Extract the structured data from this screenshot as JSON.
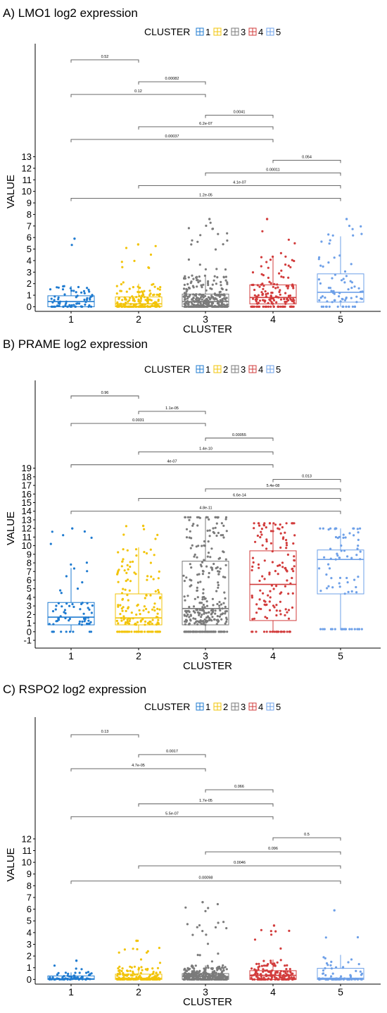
{
  "legend_title": "CLUSTER",
  "cluster_colors": [
    "#1f7bd0",
    "#f2c40a",
    "#7b7b7b",
    "#d23c3c",
    "#6ea0e8"
  ],
  "chart_data": [
    {
      "type": "box",
      "panel_label": "A) LMO1 log2 expression",
      "xlabel": "CLUSTER",
      "ylabel": "VALUE",
      "categories": [
        "1",
        "2",
        "3",
        "4",
        "5"
      ],
      "legend_entries": [
        "1",
        "2",
        "3",
        "4",
        "5"
      ],
      "yticks": [
        0,
        1,
        2,
        3,
        4,
        5,
        6,
        7,
        8,
        9,
        10,
        11,
        12,
        13
      ],
      "ylim": [
        -0.4,
        22.8
      ],
      "boxes": [
        {
          "category": "1",
          "q1": 0.0,
          "median": 0.45,
          "q3": 0.95,
          "whisker_low": 0.0,
          "whisker_high": 1.8,
          "max": 5.9
        },
        {
          "category": "2",
          "q1": 0.0,
          "median": 0.25,
          "q3": 0.85,
          "whisker_low": 0.0,
          "whisker_high": 2.0,
          "max": 5.4
        },
        {
          "category": "3",
          "q1": 0.0,
          "median": 0.45,
          "q3": 1.1,
          "whisker_low": 0.0,
          "whisker_high": 2.7,
          "max": 7.6
        },
        {
          "category": "4",
          "q1": 0.25,
          "median": 0.8,
          "q3": 1.9,
          "whisker_low": 0.0,
          "whisker_high": 4.4,
          "max": 7.6
        },
        {
          "category": "5",
          "q1": 0.4,
          "median": 1.25,
          "q3": 2.85,
          "whisker_low": 0.0,
          "whisker_high": 6.1,
          "max": 7.6
        }
      ],
      "comparisons": [
        {
          "from": "1",
          "to": "2",
          "y": 21.4,
          "p": "0.52"
        },
        {
          "from": "2",
          "to": "3",
          "y": 19.5,
          "p": "0.00082"
        },
        {
          "from": "1",
          "to": "3",
          "y": 18.4,
          "p": "0.12"
        },
        {
          "from": "3",
          "to": "4",
          "y": 16.6,
          "p": "0.0041"
        },
        {
          "from": "2",
          "to": "4",
          "y": 15.6,
          "p": "6.2e-07"
        },
        {
          "from": "1",
          "to": "4",
          "y": 14.5,
          "p": "0.00037"
        },
        {
          "from": "4",
          "to": "5",
          "y": 12.7,
          "p": "0.054"
        },
        {
          "from": "3",
          "to": "5",
          "y": 11.6,
          "p": "0.00011"
        },
        {
          "from": "2",
          "to": "5",
          "y": 10.5,
          "p": "4.1e-07"
        },
        {
          "from": "1",
          "to": "5",
          "y": 9.4,
          "p": "1.2e-05"
        }
      ]
    },
    {
      "type": "box",
      "panel_label": "B) PRAME log2 expression",
      "xlabel": "CLUSTER",
      "ylabel": "VALUE",
      "categories": [
        "1",
        "2",
        "3",
        "4",
        "5"
      ],
      "legend_entries": [
        "1",
        "2",
        "3",
        "4",
        "5"
      ],
      "yticks": [
        -1,
        0,
        1,
        2,
        3,
        4,
        5,
        6,
        7,
        8,
        9,
        10,
        11,
        12,
        13,
        14,
        15,
        16,
        17,
        18,
        19
      ],
      "ylim": [
        -1.9,
        29.2
      ],
      "boxes": [
        {
          "category": "1",
          "q1": 0.8,
          "median": 1.7,
          "q3": 3.4,
          "whisker_low": 0.0,
          "whisker_high": 7.4,
          "max": 12.0
        },
        {
          "category": "2",
          "q1": 0.8,
          "median": 1.6,
          "q3": 4.4,
          "whisker_low": 0.0,
          "whisker_high": 9.8,
          "max": 12.3
        },
        {
          "category": "3",
          "q1": 0.8,
          "median": 2.7,
          "q3": 8.2,
          "whisker_low": 0.0,
          "whisker_high": 13.3,
          "max": 13.3
        },
        {
          "category": "4",
          "q1": 1.3,
          "median": 5.5,
          "q3": 9.4,
          "whisker_low": 0.0,
          "whisker_high": 12.6,
          "max": 12.6
        },
        {
          "category": "5",
          "q1": 4.4,
          "median": 8.4,
          "q3": 9.5,
          "whisker_low": 0.3,
          "whisker_high": 12.0,
          "max": 12.0
        }
      ],
      "comparisons": [
        {
          "from": "1",
          "to": "2",
          "y": 27.4,
          "p": "0.96"
        },
        {
          "from": "2",
          "to": "3",
          "y": 25.6,
          "p": "1.1e-05"
        },
        {
          "from": "1",
          "to": "3",
          "y": 24.2,
          "p": "0.0031"
        },
        {
          "from": "3",
          "to": "4",
          "y": 22.5,
          "p": "0.00055"
        },
        {
          "from": "2",
          "to": "4",
          "y": 20.9,
          "p": "1.4e-10"
        },
        {
          "from": "1",
          "to": "4",
          "y": 19.4,
          "p": "4e-07"
        },
        {
          "from": "4",
          "to": "5",
          "y": 17.7,
          "p": "0.013"
        },
        {
          "from": "3",
          "to": "5",
          "y": 16.6,
          "p": "5.4e-08"
        },
        {
          "from": "2",
          "to": "5",
          "y": 15.5,
          "p": "6.6e-14"
        },
        {
          "from": "1",
          "to": "5",
          "y": 14.0,
          "p": "4.8e-11"
        }
      ]
    },
    {
      "type": "box",
      "panel_label": "C) RSPO2 log2 expression",
      "xlabel": "CLUSTER",
      "ylabel": "VALUE",
      "categories": [
        "1",
        "2",
        "3",
        "4",
        "5"
      ],
      "legend_entries": [
        "1",
        "2",
        "3",
        "4",
        "5"
      ],
      "yticks": [
        0,
        1,
        2,
        3,
        4,
        5,
        6,
        7,
        8,
        9,
        10,
        11,
        12
      ],
      "ylim": [
        -0.4,
        22.4
      ],
      "boxes": [
        {
          "category": "1",
          "q1": 0.0,
          "median": 0.05,
          "q3": 0.3,
          "whisker_low": 0.0,
          "whisker_high": 0.6,
          "max": 1.6
        },
        {
          "category": "2",
          "q1": 0.0,
          "median": 0.1,
          "q3": 0.45,
          "whisker_low": 0.0,
          "whisker_high": 1.1,
          "max": 3.3
        },
        {
          "category": "3",
          "q1": 0.0,
          "median": 0.25,
          "q3": 0.5,
          "whisker_low": 0.0,
          "whisker_high": 1.2,
          "max": 6.6
        },
        {
          "category": "4",
          "q1": 0.0,
          "median": 0.35,
          "q3": 0.75,
          "whisker_low": 0.0,
          "whisker_high": 1.7,
          "max": 4.6
        },
        {
          "category": "5",
          "q1": 0.0,
          "median": 0.1,
          "q3": 0.95,
          "whisker_low": 0.0,
          "whisker_high": 2.1,
          "max": 5.9
        }
      ],
      "comparisons": [
        {
          "from": "1",
          "to": "2",
          "y": 20.9,
          "p": "0.13"
        },
        {
          "from": "2",
          "to": "3",
          "y": 19.2,
          "p": "0.0017"
        },
        {
          "from": "1",
          "to": "3",
          "y": 18.0,
          "p": "4.7e-05"
        },
        {
          "from": "3",
          "to": "4",
          "y": 16.2,
          "p": "0.066"
        },
        {
          "from": "2",
          "to": "4",
          "y": 15.0,
          "p": "1.7e-05"
        },
        {
          "from": "1",
          "to": "4",
          "y": 13.9,
          "p": "5.5e-07"
        },
        {
          "from": "4",
          "to": "5",
          "y": 12.1,
          "p": "0.5"
        },
        {
          "from": "3",
          "to": "5",
          "y": 10.9,
          "p": "0.096"
        },
        {
          "from": "2",
          "to": "5",
          "y": 9.7,
          "p": "0.0046"
        },
        {
          "from": "1",
          "to": "5",
          "y": 8.4,
          "p": "0.00098"
        }
      ]
    }
  ]
}
